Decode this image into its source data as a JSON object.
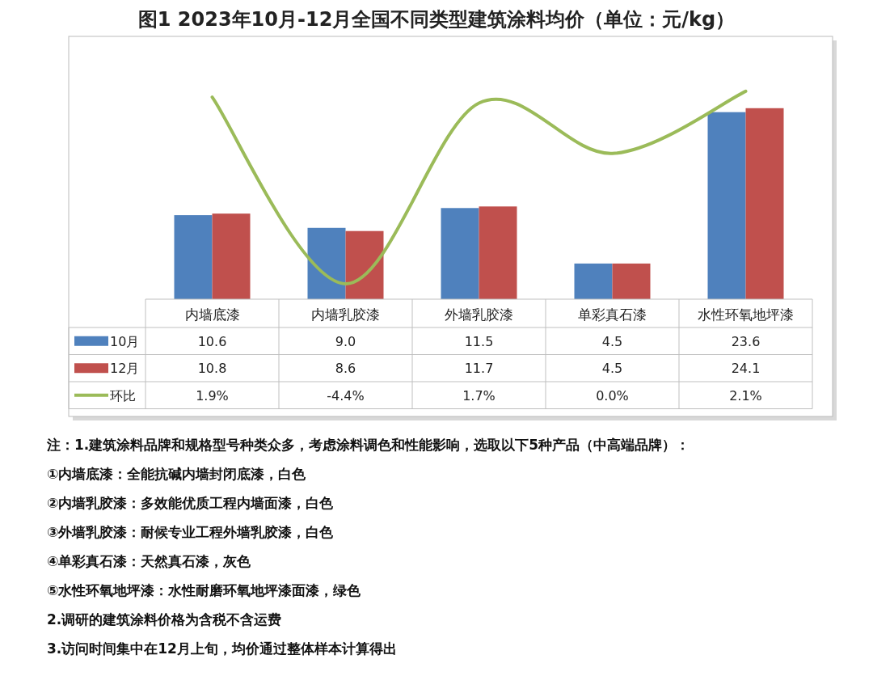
{
  "chart_data": {
    "type": "bar",
    "title": "图1 2023年10月-12月全国不同类型建筑涂料均价（单位：元/kg）",
    "categories": [
      "内墙底漆",
      "内墙乳胶漆",
      "外墙乳胶漆",
      "单彩真石漆",
      "水性环氧地坪漆"
    ],
    "series": [
      {
        "name": "10月",
        "color": "#4f81bd",
        "values": [
          10.6,
          9.0,
          11.5,
          4.5,
          23.6
        ],
        "value_labels": [
          "10.6",
          "9.0",
          "11.5",
          "4.5",
          "23.6"
        ]
      },
      {
        "name": "12月",
        "color": "#c0504d",
        "values": [
          10.8,
          8.6,
          11.7,
          4.5,
          24.1
        ],
        "value_labels": [
          "10.8",
          "8.6",
          "11.7",
          "4.5",
          "24.1"
        ]
      },
      {
        "name": "环比",
        "type": "line",
        "axis": "y2",
        "color": "#9bbb59",
        "values": [
          1.9,
          -4.4,
          1.7,
          0.0,
          2.1
        ],
        "value_labels": [
          "1.9%",
          "-4.4%",
          "1.7%",
          "0.0%",
          "2.1%"
        ]
      }
    ],
    "legend": "bottom left",
    "tick_labels": "x",
    "annotations": [
      "注：1.建筑涂料品牌和规格型号种类众多，考虑涂料调色和性能影响，选取以下5种产品（中高端品牌）：",
      "①内墙底漆：全能抗碱内墙封闭底漆，白色",
      "②内墙乳胶漆：多效能优质工程内墙面漆，白色",
      "③外墙乳胶漆：耐候专业工程外墙乳胶漆，白色",
      "④单彩真石漆：天然真石漆，灰色",
      "⑤水性环氧地坪漆：水性耐磨环氧地坪漆面漆，绿色",
      "2.调研的建筑涂料价格为含税不含运费",
      "3.访问时间集中在12月上旬，均价通过整体样本计算得出"
    ]
  }
}
